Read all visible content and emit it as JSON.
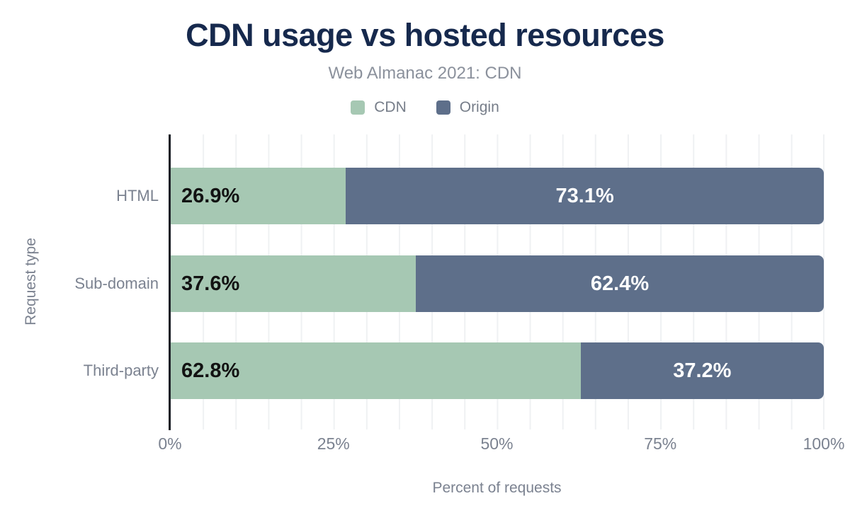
{
  "header": {
    "title": "CDN usage vs hosted resources",
    "subtitle": "Web Almanac 2021: CDN"
  },
  "colors": {
    "cdn": "#a6c8b3",
    "origin": "#5e6f8a",
    "title_navy": "#16294d",
    "muted_text": "#7b8290",
    "gridline": "#eff1f3",
    "axis_line": "#1b1f26",
    "value_on_cdn": "#121212",
    "value_on_origin": "#ffffff"
  },
  "chart_data": {
    "type": "bar",
    "stacked": true,
    "orientation": "horizontal",
    "title": "CDN usage vs hosted resources",
    "subtitle": "Web Almanac 2021: CDN",
    "xlabel": "Percent of requests",
    "ylabel": "Request type",
    "categories": [
      "HTML",
      "Sub-domain",
      "Third-party"
    ],
    "series": [
      {
        "name": "CDN",
        "color": "#a6c8b3",
        "values": [
          26.9,
          37.6,
          62.8
        ],
        "labels": [
          "26.9%",
          "37.6%",
          "62.8%"
        ]
      },
      {
        "name": "Origin",
        "color": "#5e6f8a",
        "values": [
          73.1,
          62.4,
          37.2
        ],
        "labels": [
          "73.1%",
          "62.4%",
          "37.2%"
        ]
      }
    ],
    "xlim": [
      0,
      100
    ],
    "x_ticks": [
      {
        "value": 0,
        "label": "0%"
      },
      {
        "value": 25,
        "label": "25%"
      },
      {
        "value": 50,
        "label": "50%"
      },
      {
        "value": 75,
        "label": "75%"
      },
      {
        "value": 100,
        "label": "100%"
      }
    ],
    "grid": "vertical minor lines every 5%",
    "legend_position": "top"
  }
}
